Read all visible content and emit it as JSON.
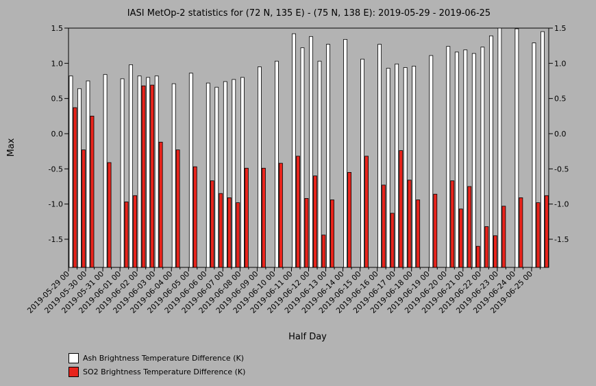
{
  "chart_data": {
    "type": "bar",
    "title": "IASI MetOp-2 statistics for (72 N, 135 E) - (75 N, 138 E): 2019-05-29 - 2019-06-25",
    "xlabel": "Half Day",
    "ylabel": "Max",
    "ylim": [
      -1.9,
      1.5
    ],
    "yticks": [
      1.5,
      1.0,
      0.5,
      0.0,
      -0.5,
      -1.0,
      -1.5
    ],
    "ytick_labels": [
      "1.5",
      "1.0",
      "0.5",
      "0.0",
      "-0.5",
      "-1.0",
      "-1.5"
    ],
    "xtick_labels": [
      "2019-05-29 00",
      "2019-05-30 00",
      "2019-05-31 00",
      "2019-06-01 00",
      "2019-06-02 00",
      "2019-06-03 00",
      "2019-06-04 00",
      "2019-06-05 00",
      "2019-06-06 00",
      "2019-06-07 00",
      "2019-06-08 00",
      "2019-06-09 00",
      "2019-06-10 00",
      "2019-06-11 00",
      "2019-06-12 00",
      "2019-06-13 00",
      "2019-06-14 00",
      "2019-06-15 00",
      "2019-06-16 00",
      "2019-06-17 00",
      "2019-06-18 00",
      "2019-06-19 00",
      "2019-06-20 00",
      "2019-06-21 00",
      "2019-06-22 00",
      "2019-06-23 00",
      "2019-06-24 00",
      "2019-06-25 00"
    ],
    "grid": false,
    "legend_position": "bottom-left",
    "categories": [
      "05-29 00",
      "05-29 12",
      "05-30 00",
      "05-30 12",
      "05-31 00",
      "05-31 12",
      "06-01 00",
      "06-01 12",
      "06-02 00",
      "06-02 12",
      "06-03 00",
      "06-03 12",
      "06-04 00",
      "06-04 12",
      "06-05 00",
      "06-05 12",
      "06-06 00",
      "06-06 12",
      "06-07 00",
      "06-07 12",
      "06-08 00",
      "06-08 12",
      "06-09 00",
      "06-09 12",
      "06-10 00",
      "06-10 12",
      "06-11 00",
      "06-11 12",
      "06-12 00",
      "06-12 12",
      "06-13 00",
      "06-13 12",
      "06-14 00",
      "06-14 12",
      "06-15 00",
      "06-15 12",
      "06-16 00",
      "06-16 12",
      "06-17 00",
      "06-17 12",
      "06-18 00",
      "06-18 12",
      "06-19 00",
      "06-19 12",
      "06-20 00",
      "06-20 12",
      "06-21 00",
      "06-21 12",
      "06-22 00",
      "06-22 12",
      "06-23 00",
      "06-23 12",
      "06-24 00",
      "06-24 12",
      "06-25 00",
      "06-25 12"
    ],
    "series": [
      {
        "name": "Ash Brightness Temperature Difference (K)",
        "color": "#ffffff",
        "values": [
          0.82,
          0.64,
          0.75,
          null,
          0.84,
          null,
          0.78,
          0.98,
          0.82,
          0.8,
          0.82,
          null,
          0.71,
          null,
          0.86,
          null,
          0.72,
          0.66,
          0.74,
          0.77,
          0.8,
          null,
          0.95,
          null,
          1.03,
          null,
          1.42,
          1.22,
          1.38,
          1.03,
          1.27,
          null,
          1.34,
          null,
          1.06,
          null,
          1.27,
          0.93,
          0.99,
          0.94,
          0.96,
          null,
          1.11,
          null,
          1.24,
          1.16,
          1.19,
          1.14,
          1.23,
          1.39,
          1.5,
          null,
          1.49,
          null,
          1.29,
          1.45
        ]
      },
      {
        "name": "SO2 Brightness Temperature Difference (K)",
        "color": "#e8241c",
        "values": [
          0.37,
          -0.23,
          0.25,
          null,
          -0.41,
          null,
          -0.97,
          -0.88,
          0.68,
          0.69,
          -0.12,
          null,
          -0.23,
          null,
          -0.47,
          null,
          -0.67,
          -0.85,
          -0.91,
          -0.98,
          -0.49,
          null,
          -0.49,
          null,
          -0.42,
          null,
          -0.32,
          -0.92,
          -0.6,
          -1.44,
          -0.94,
          null,
          -0.55,
          null,
          -0.32,
          null,
          -0.73,
          -1.13,
          -0.24,
          -0.66,
          -0.94,
          null,
          -0.86,
          null,
          -0.67,
          -1.07,
          -0.75,
          -1.6,
          -1.32,
          -1.45,
          -1.03,
          null,
          -0.91,
          null,
          -0.98,
          -0.88
        ]
      }
    ]
  }
}
